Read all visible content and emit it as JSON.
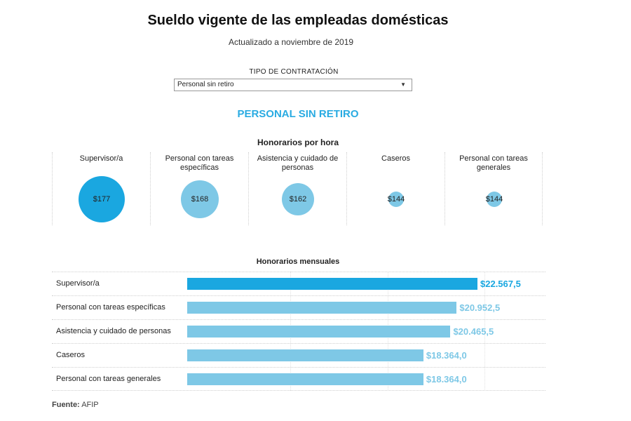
{
  "header": {
    "title": "Sueldo vigente de las empleadas domésticas",
    "subtitle": "Actualizado a noviembre de 2019"
  },
  "filter": {
    "label": "TIPO DE CONTRATACIÓN",
    "selected": "Personal sin retiro"
  },
  "section_title": "PERSONAL SIN RETIRO",
  "colors": {
    "highlight": "#1aa7e0",
    "normal": "#7ec8e6",
    "title_accent": "#29abe2"
  },
  "chart_data": [
    {
      "type": "bubble",
      "title": "Honorarios por hora",
      "categories": [
        "Supervisor/a",
        "Personal con tareas específicas",
        "Asistencia y cuidado de personas",
        "Caseros",
        "Personal con tareas generales"
      ],
      "values": [
        177,
        168,
        162,
        144,
        144
      ],
      "value_labels": [
        "$177",
        "$168",
        "$162",
        "$144",
        "$144"
      ],
      "highlight_index": 0
    },
    {
      "type": "bar",
      "orientation": "horizontal",
      "title": "Honorarios mensuales",
      "categories": [
        "Supervisor/a",
        "Personal con tareas específicas",
        "Asistencia y cuidado de personas",
        "Caseros",
        "Personal con tareas generales"
      ],
      "values": [
        22567.5,
        20952.5,
        20465.5,
        18364.0,
        18364.0
      ],
      "value_labels": [
        "$22.567,5",
        "$20.952,5",
        "$20.465,5",
        "$18.364,0",
        "$18.364,0"
      ],
      "xlim": [
        0,
        25000
      ],
      "highlight_index": 0
    }
  ],
  "footer": {
    "source_label": "Fuente:",
    "source_value": "AFIP"
  }
}
